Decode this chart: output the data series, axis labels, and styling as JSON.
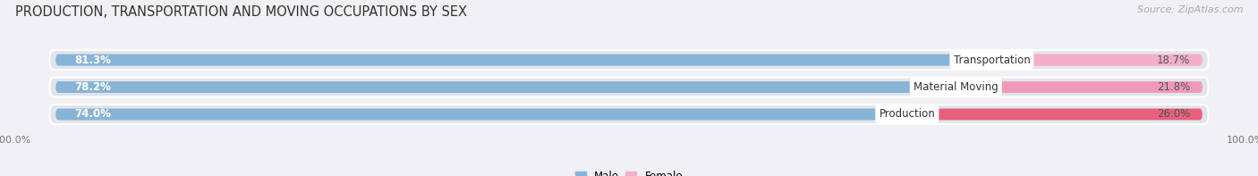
{
  "title": "PRODUCTION, TRANSPORTATION AND MOVING OCCUPATIONS BY SEX",
  "source": "Source: ZipAtlas.com",
  "categories": [
    "Transportation",
    "Material Moving",
    "Production"
  ],
  "male_values": [
    81.3,
    78.2,
    74.0
  ],
  "female_values": [
    18.7,
    21.8,
    26.0
  ],
  "male_color": "#88b4d8",
  "female_colors": [
    "#f4afc8",
    "#f09ab8",
    "#e8607a"
  ],
  "row_bg_color": "#e2e4ec",
  "bar_inner_bg_color": "#cdd0e0",
  "title_fontsize": 10.5,
  "source_fontsize": 8,
  "label_fontsize": 8.5,
  "pct_fontsize": 8.5,
  "tick_fontsize": 8,
  "legend_fontsize": 8.5,
  "fig_bg_color": "#f0f0f5"
}
